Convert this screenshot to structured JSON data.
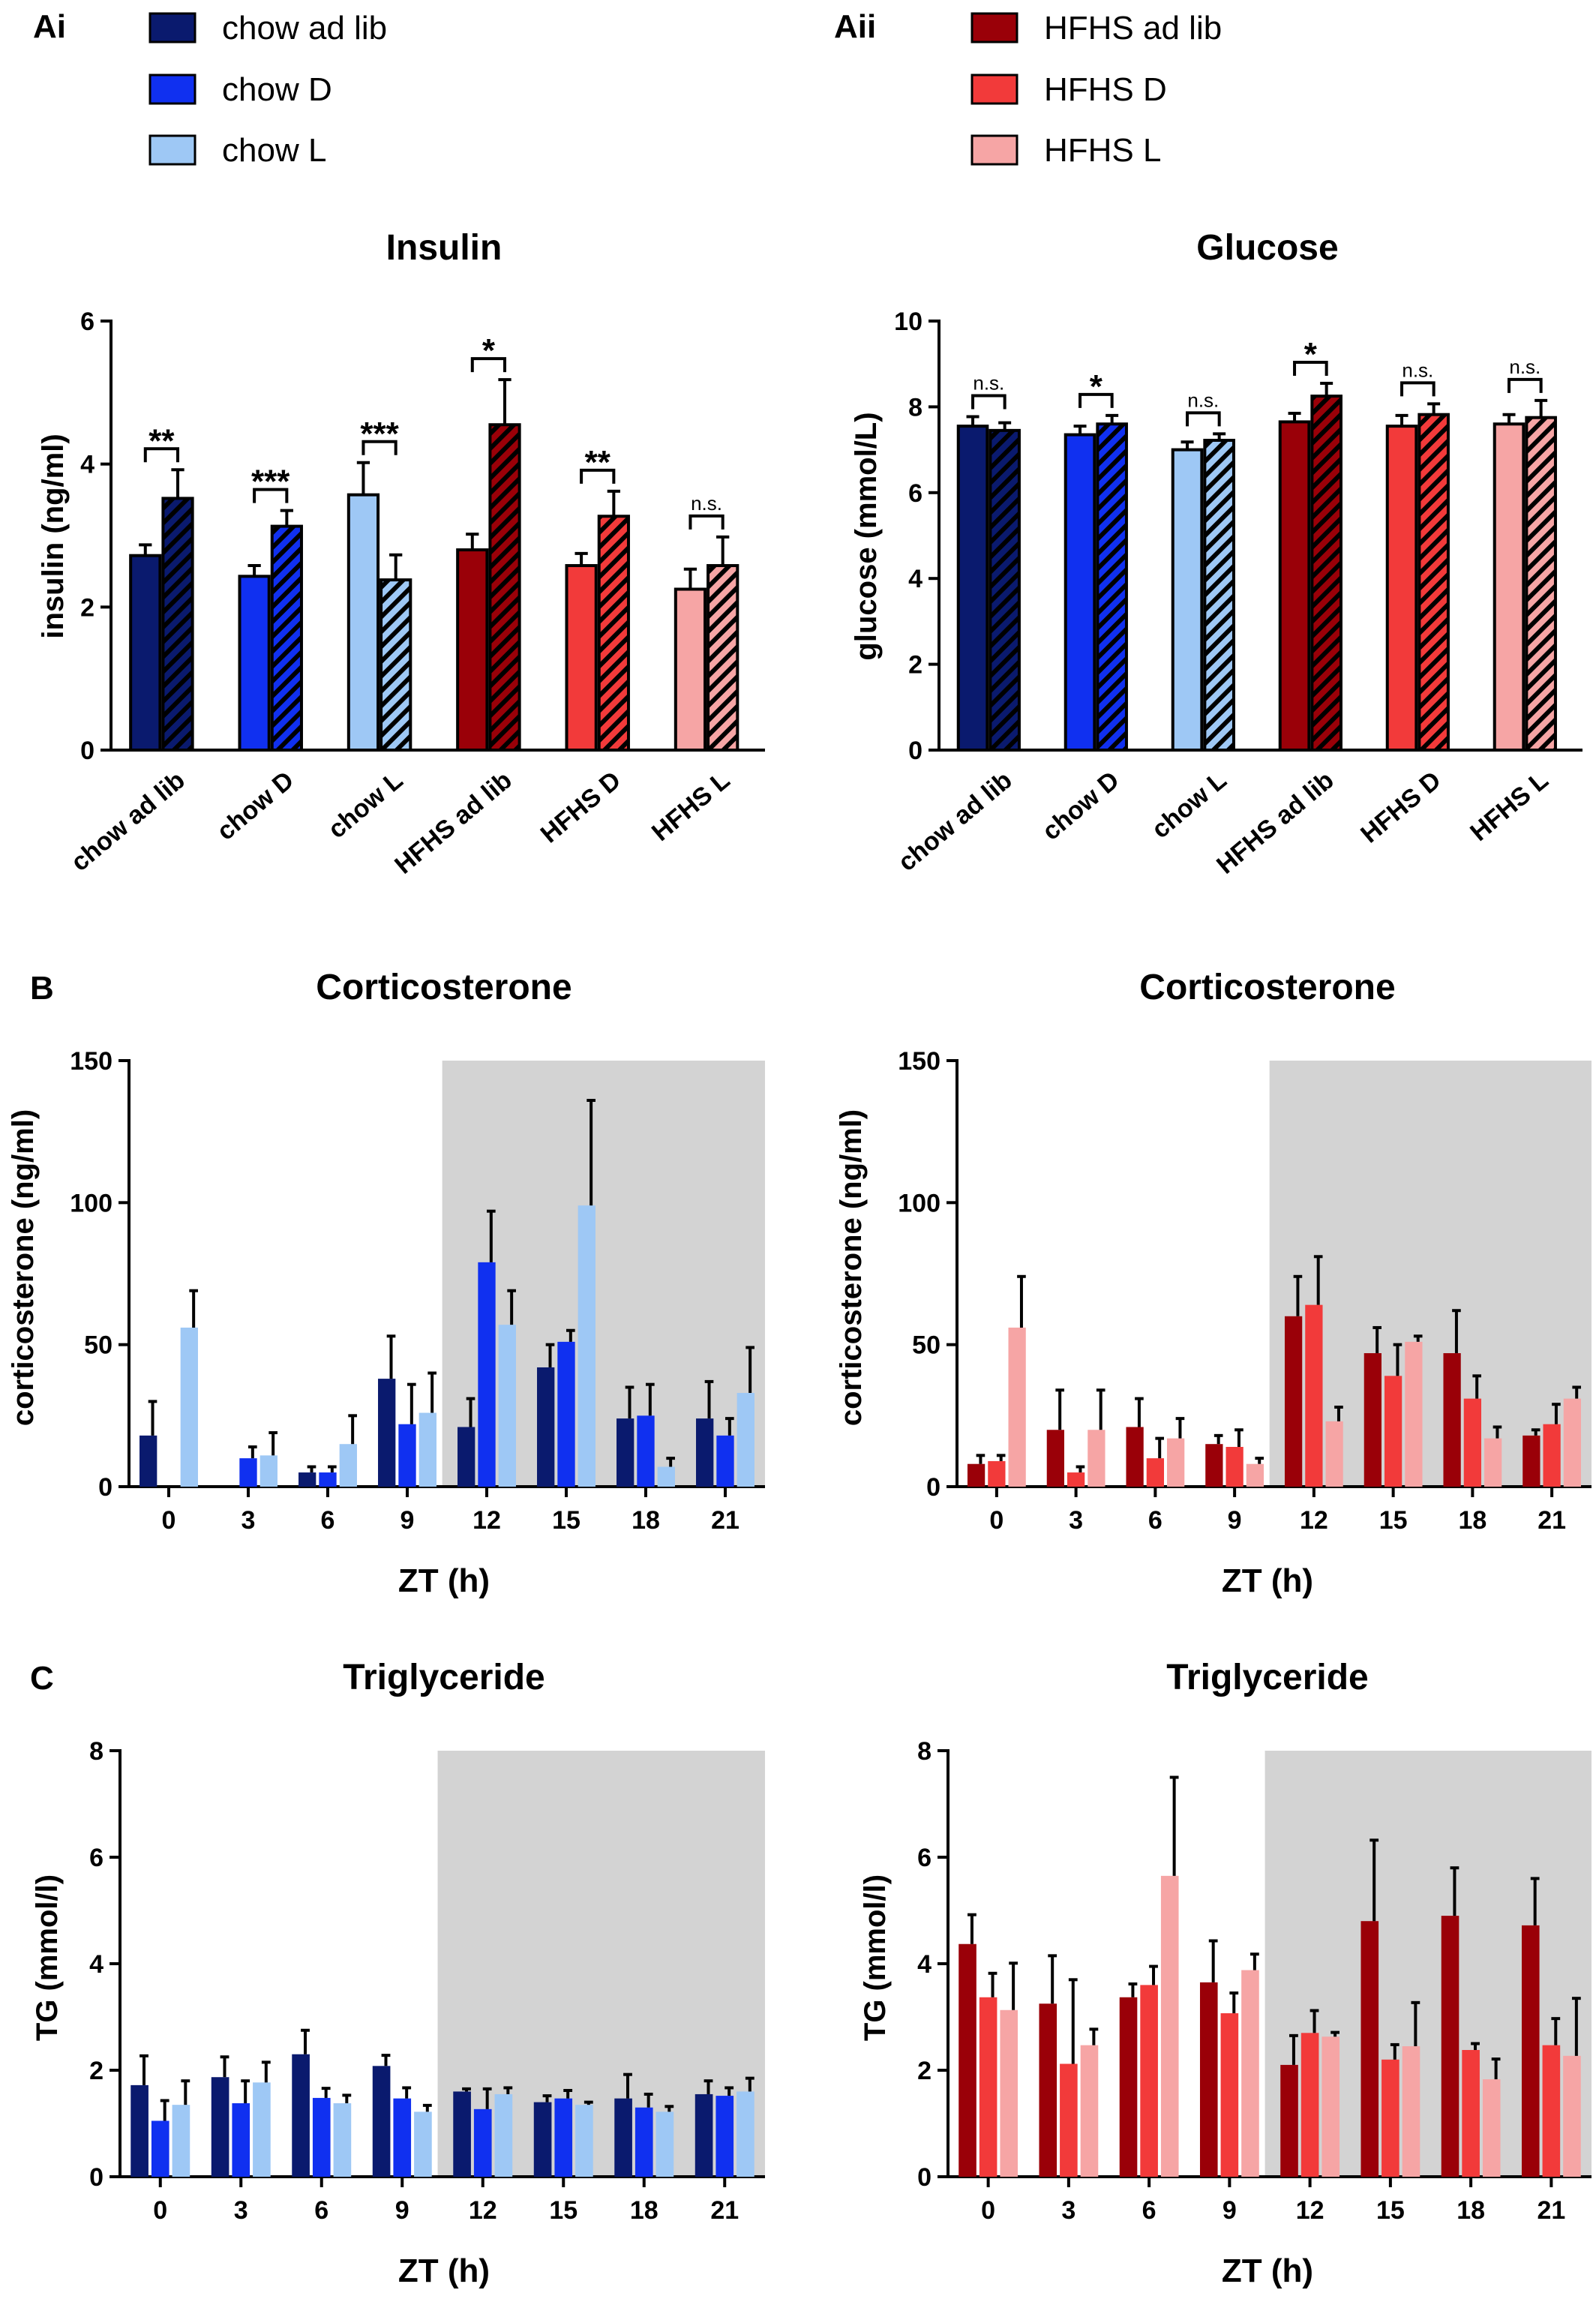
{
  "figure": {
    "panel_labels": [
      "Ai",
      "Aii",
      "B",
      "C"
    ]
  },
  "legends": {
    "chow": [
      {
        "label": "chow ad lib",
        "color": "#0a1a6e"
      },
      {
        "label": "chow D",
        "color": "#1030f0"
      },
      {
        "label": "chow L",
        "color": "#9ec8f5"
      }
    ],
    "hfhs": [
      {
        "label": "HFHS ad lib",
        "color": "#9a0008"
      },
      {
        "label": "HFHS D",
        "color": "#f23a3a"
      },
      {
        "label": "HFHS L",
        "color": "#f6a5a5"
      }
    ]
  },
  "chart_data": [
    {
      "id": "insulin",
      "type": "bar",
      "title": "Insulin",
      "ylabel": "insulin (ng/ml)",
      "ylim": [
        0,
        6
      ],
      "yticks": [
        0,
        2,
        4,
        6
      ],
      "categories": [
        "chow ad lib",
        "chow D",
        "chow L",
        "HFHS ad lib",
        "HFHS D",
        "HFHS L"
      ],
      "colors": [
        "#0a1a6e",
        "#1030f0",
        "#9ec8f5",
        "#9a0008",
        "#f23a3a",
        "#f6a5a5"
      ],
      "series": [
        {
          "pattern": "solid",
          "values": [
            2.72,
            2.43,
            3.57,
            2.8,
            2.58,
            2.25
          ],
          "errors": [
            0.15,
            0.15,
            0.45,
            0.22,
            0.17,
            0.28
          ]
        },
        {
          "pattern": "hatched",
          "values": [
            3.52,
            3.13,
            2.38,
            4.55,
            3.27,
            2.58
          ],
          "errors": [
            0.4,
            0.22,
            0.35,
            0.63,
            0.35,
            0.4
          ]
        }
      ],
      "significance": [
        "**",
        "***",
        "***",
        "*",
        "**",
        "n.s."
      ]
    },
    {
      "id": "glucose",
      "type": "bar",
      "title": "Glucose",
      "ylabel": "glucose (mmol/L)",
      "ylim": [
        0,
        10
      ],
      "yticks": [
        0,
        2,
        4,
        6,
        8,
        10
      ],
      "categories": [
        "chow ad lib",
        "chow D",
        "chow L",
        "HFHS ad lib",
        "HFHS D",
        "HFHS L"
      ],
      "colors": [
        "#0a1a6e",
        "#1030f0",
        "#9ec8f5",
        "#9a0008",
        "#f23a3a",
        "#f6a5a5"
      ],
      "series": [
        {
          "pattern": "solid",
          "values": [
            7.55,
            7.35,
            7.0,
            7.65,
            7.55,
            7.6
          ],
          "errors": [
            0.22,
            0.2,
            0.18,
            0.2,
            0.25,
            0.22
          ]
        },
        {
          "pattern": "hatched",
          "values": [
            7.45,
            7.6,
            7.22,
            8.25,
            7.82,
            7.75
          ],
          "errors": [
            0.18,
            0.2,
            0.15,
            0.3,
            0.25,
            0.4
          ]
        }
      ],
      "significance": [
        "n.s.",
        "*",
        "n.s.",
        "*",
        "n.s.",
        "n.s."
      ]
    },
    {
      "id": "cort-chow",
      "type": "bar",
      "title": "Corticosterone",
      "xlabel": "ZT (h)",
      "ylabel": "corticosterone (ng/ml)",
      "ylim": [
        0,
        150
      ],
      "yticks": [
        0,
        50,
        100,
        150
      ],
      "categories": [
        "0",
        "3",
        "6",
        "9",
        "12",
        "15",
        "18",
        "21"
      ],
      "dark_phase_start": "12",
      "series": [
        {
          "name": "chow ad lib",
          "color": "#0a1a6e",
          "values": [
            18,
            0,
            5,
            38,
            21,
            42,
            24,
            24
          ],
          "errors": [
            12,
            0,
            2,
            15,
            10,
            8,
            11,
            13
          ]
        },
        {
          "name": "chow D",
          "color": "#1030f0",
          "values": [
            0,
            10,
            5,
            22,
            79,
            51,
            25,
            18
          ],
          "errors": [
            0,
            4,
            2,
            14,
            18,
            4,
            11,
            6
          ]
        },
        {
          "name": "chow L",
          "color": "#9ec8f5",
          "values": [
            56,
            11,
            15,
            26,
            57,
            99,
            7,
            33
          ],
          "errors": [
            13,
            8,
            10,
            14,
            12,
            37,
            3,
            16
          ]
        }
      ]
    },
    {
      "id": "cort-hfhs",
      "type": "bar",
      "title": "Corticosterone",
      "xlabel": "ZT (h)",
      "ylabel": "corticosterone (ng/ml)",
      "ylim": [
        0,
        150
      ],
      "yticks": [
        0,
        50,
        100,
        150
      ],
      "categories": [
        "0",
        "3",
        "6",
        "9",
        "12",
        "15",
        "18",
        "21"
      ],
      "dark_phase_start": "12",
      "series": [
        {
          "name": "HFHS ad lib",
          "color": "#9a0008",
          "values": [
            8,
            20,
            21,
            15,
            60,
            47,
            47,
            18
          ],
          "errors": [
            3,
            14,
            10,
            3,
            14,
            9,
            15,
            2
          ]
        },
        {
          "name": "HFHS D",
          "color": "#f23a3a",
          "values": [
            9,
            5,
            10,
            14,
            64,
            39,
            31,
            22
          ],
          "errors": [
            2,
            2,
            7,
            6,
            17,
            11,
            8,
            7
          ]
        },
        {
          "name": "HFHS L",
          "color": "#f6a5a5",
          "values": [
            56,
            20,
            17,
            8,
            23,
            51,
            17,
            31
          ],
          "errors": [
            18,
            14,
            7,
            2,
            5,
            2,
            4,
            4
          ]
        }
      ]
    },
    {
      "id": "tg-chow",
      "type": "bar",
      "title": "Triglyceride",
      "xlabel": "ZT (h)",
      "ylabel": "TG (mmol/l)",
      "ylim": [
        0,
        8
      ],
      "yticks": [
        0,
        2,
        4,
        6,
        8
      ],
      "categories": [
        "0",
        "3",
        "6",
        "9",
        "12",
        "15",
        "18",
        "21"
      ],
      "dark_phase_start": "12",
      "series": [
        {
          "name": "chow ad lib",
          "color": "#0a1a6e",
          "values": [
            1.72,
            1.87,
            2.3,
            2.08,
            1.6,
            1.4,
            1.47,
            1.55
          ],
          "errors": [
            0.55,
            0.38,
            0.45,
            0.2,
            0.05,
            0.12,
            0.45,
            0.25
          ]
        },
        {
          "name": "chow D",
          "color": "#1030f0",
          "values": [
            1.05,
            1.38,
            1.48,
            1.47,
            1.27,
            1.47,
            1.3,
            1.52
          ],
          "errors": [
            0.38,
            0.42,
            0.18,
            0.2,
            0.38,
            0.15,
            0.25,
            0.15
          ]
        },
        {
          "name": "chow L",
          "color": "#9ec8f5",
          "values": [
            1.35,
            1.77,
            1.38,
            1.22,
            1.55,
            1.35,
            1.22,
            1.6
          ],
          "errors": [
            0.45,
            0.38,
            0.15,
            0.12,
            0.12,
            0.05,
            0.1,
            0.25
          ]
        }
      ]
    },
    {
      "id": "tg-hfhs",
      "type": "bar",
      "title": "Triglyceride",
      "xlabel": "ZT (h)",
      "ylabel": "TG (mmol/l)",
      "ylim": [
        0,
        8
      ],
      "yticks": [
        0,
        2,
        4,
        6,
        8
      ],
      "categories": [
        "0",
        "3",
        "6",
        "9",
        "12",
        "15",
        "18",
        "21"
      ],
      "dark_phase_start": "12",
      "series": [
        {
          "name": "HFHS ad lib",
          "color": "#9a0008",
          "values": [
            4.37,
            3.25,
            3.37,
            3.65,
            2.1,
            4.8,
            4.9,
            4.72
          ],
          "errors": [
            0.55,
            0.9,
            0.25,
            0.78,
            0.55,
            1.52,
            0.9,
            0.88
          ]
        },
        {
          "name": "HFHS D",
          "color": "#f23a3a",
          "values": [
            3.37,
            2.12,
            3.6,
            3.07,
            2.7,
            2.2,
            2.38,
            2.47
          ],
          "errors": [
            0.45,
            1.58,
            0.35,
            0.38,
            0.42,
            0.28,
            0.12,
            0.5
          ]
        },
        {
          "name": "HFHS L",
          "color": "#f6a5a5",
          "values": [
            3.13,
            2.47,
            5.65,
            3.88,
            2.63,
            2.45,
            1.83,
            2.27
          ],
          "errors": [
            0.88,
            0.3,
            1.85,
            0.3,
            0.08,
            0.82,
            0.38,
            1.08
          ]
        }
      ]
    }
  ]
}
